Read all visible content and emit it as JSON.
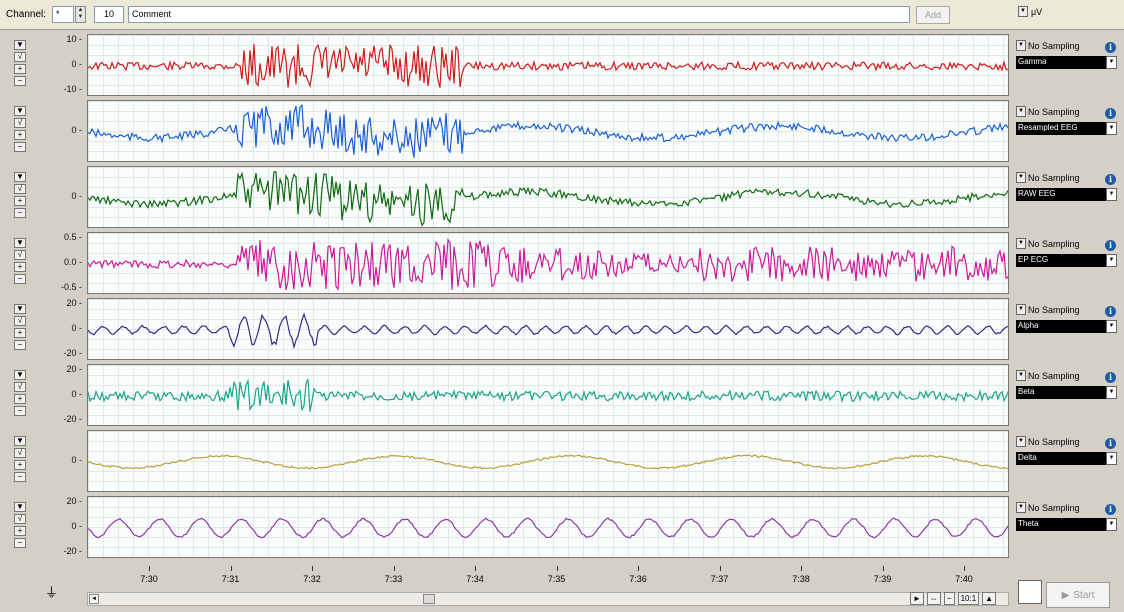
{
  "toolbar": {
    "channel_label": "Channel:",
    "channel_value": "*",
    "number_value": "10",
    "comment_placeholder": "Comment",
    "add_label": "Add",
    "units_value": "μV"
  },
  "channels": [
    {
      "name": "Gamma",
      "color": "#d11a1a",
      "yticks": [
        "10 -",
        "0 -",
        "-10 -"
      ],
      "sampling": "No Sampling"
    },
    {
      "name": "Resampled EEG",
      "color": "#1a5fd8",
      "yticks": [
        "0 -"
      ],
      "sampling": "No Sampling"
    },
    {
      "name": "RAW EEG",
      "color": "#116a11",
      "yticks": [
        "0 -"
      ],
      "sampling": "No Sampling"
    },
    {
      "name": "EP ECG",
      "color": "#cc1a9a",
      "yticks": [
        "0.5 -",
        "0.0 -",
        "-0.5 -"
      ],
      "sampling": "No Sampling"
    },
    {
      "name": "Alpha",
      "color": "#2c2c8a",
      "yticks": [
        "20 -",
        "0 -",
        "-20 -"
      ],
      "sampling": "No Sampling"
    },
    {
      "name": "Beta",
      "color": "#1aa58a",
      "yticks": [
        "20 -",
        "0 -",
        "-20 -"
      ],
      "sampling": "No Sampling"
    },
    {
      "name": "Delta",
      "color": "#b8a03a",
      "yticks": [
        "0 -"
      ],
      "sampling": "No Sampling"
    },
    {
      "name": "Theta",
      "color": "#8b3aa8",
      "yticks": [
        "20 -",
        "0 -",
        "-20 -"
      ],
      "sampling": "No Sampling"
    }
  ],
  "time_ticks": [
    "7:30",
    "7:31",
    "7:32",
    "7:33",
    "7:34",
    "7:35",
    "7:36",
    "7:37",
    "7:38",
    "7:39",
    "7:40"
  ],
  "zoom_label": "10:1",
  "start_label": "Start",
  "colors": {
    "toolbar_bg": "#ece9d8",
    "plot_bg": "#fbfdfd",
    "grid": "#dde8e8"
  }
}
